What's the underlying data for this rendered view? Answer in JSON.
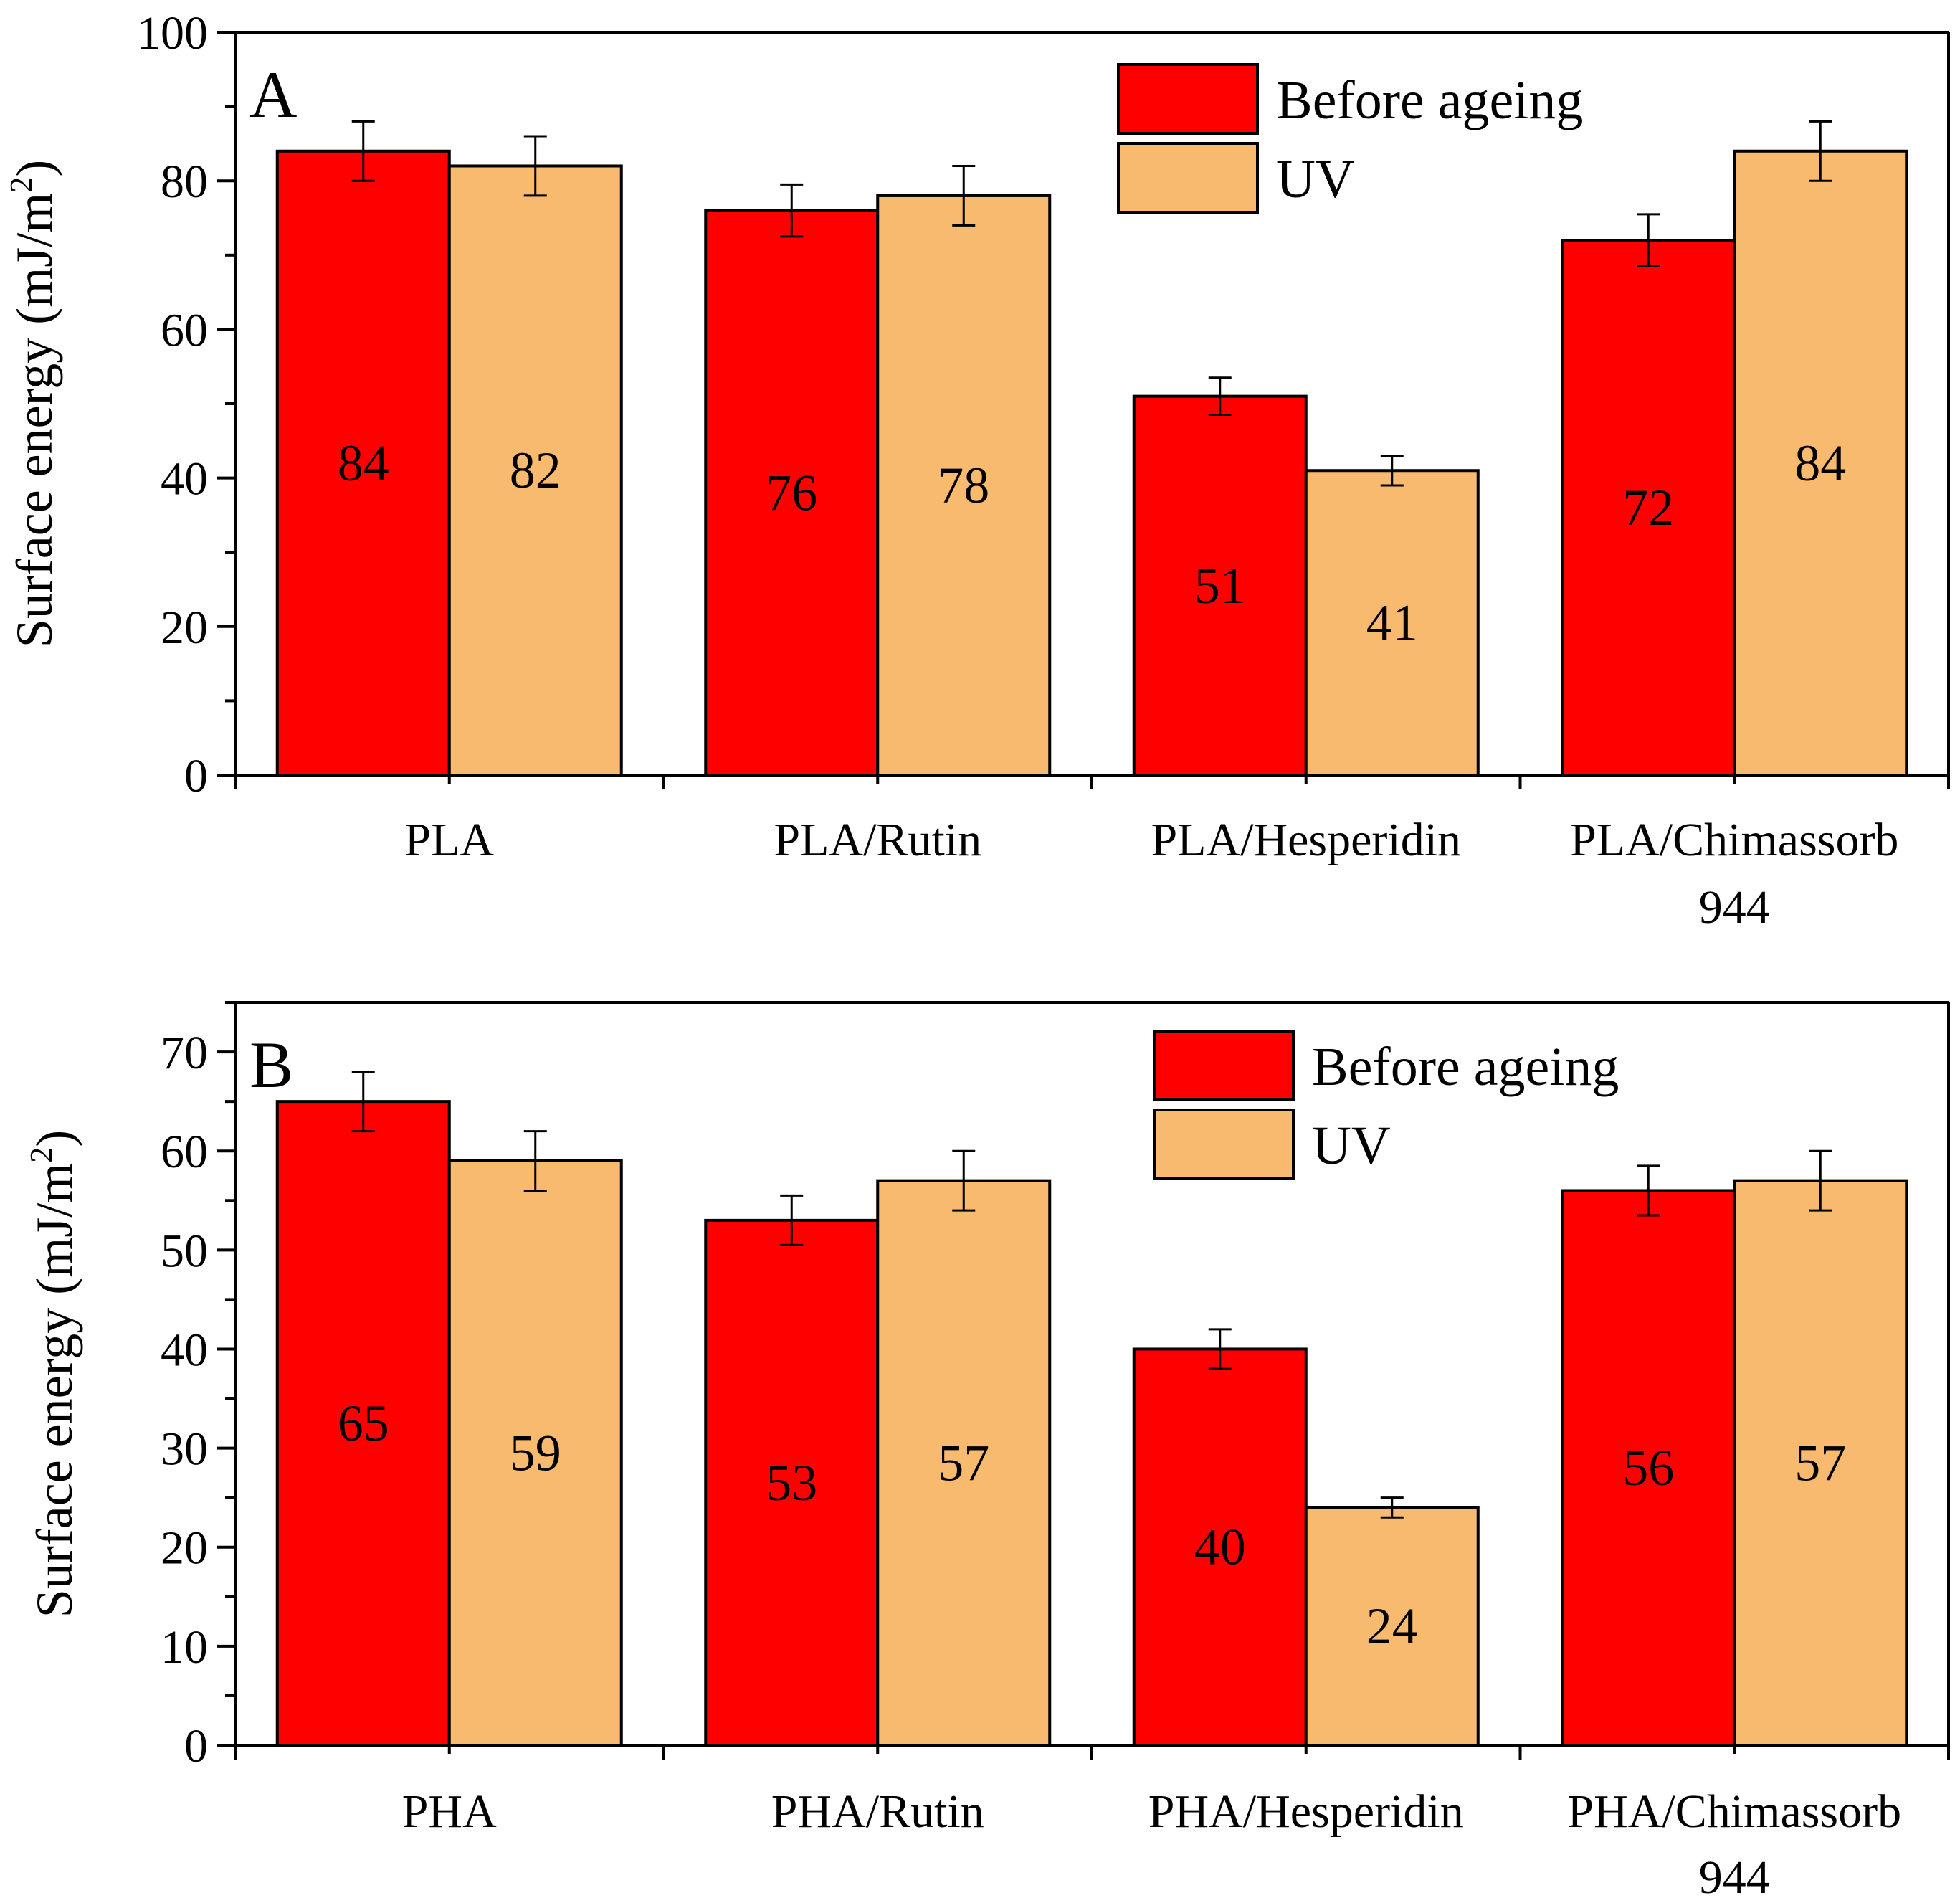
{
  "colors": {
    "before": "#ff0000",
    "uv": "#f7ba6f",
    "axis": "#000000"
  },
  "chart_data": [
    {
      "type": "bar",
      "panel_label": "A",
      "ylabel": "Surface energy (mJ/m",
      "ylabel_sup": "2",
      "ylabel_close": ")",
      "ylim": [
        0,
        100
      ],
      "yticks": [
        0,
        20,
        40,
        60,
        80,
        100
      ],
      "yminor_step": 10,
      "categories": [
        [
          "PLA"
        ],
        [
          "PLA/Rutin"
        ],
        [
          "PLA/Hesperidin"
        ],
        [
          "PLA/Chimassorb",
          "944"
        ]
      ],
      "series": [
        {
          "name": "Before ageing",
          "values": [
            84,
            76,
            51,
            72
          ],
          "errors": [
            4.0,
            3.5,
            2.5,
            3.5
          ]
        },
        {
          "name": "UV",
          "values": [
            82,
            78,
            41,
            84
          ],
          "errors": [
            4.0,
            4.0,
            2.0,
            4.0
          ]
        }
      ],
      "legend_position": "top-right"
    },
    {
      "type": "bar",
      "panel_label": "B",
      "ylabel": "Surface energy (mJ/m",
      "ylabel_sup": "2",
      "ylabel_close": ")",
      "ylim": [
        0,
        75
      ],
      "yticks": [
        0,
        10,
        20,
        30,
        40,
        50,
        60,
        70
      ],
      "yminor_step": 5,
      "categories": [
        [
          "PHA"
        ],
        [
          "PHA/Rutin"
        ],
        [
          "PHA/Hesperidin"
        ],
        [
          "PHA/Chimassorb",
          "944"
        ]
      ],
      "series": [
        {
          "name": "Before ageing",
          "values": [
            65,
            53,
            40,
            56
          ],
          "errors": [
            3.0,
            2.5,
            2.0,
            2.5
          ]
        },
        {
          "name": "UV",
          "values": [
            59,
            57,
            24,
            57
          ],
          "errors": [
            3.0,
            3.0,
            1.0,
            3.0
          ]
        }
      ],
      "legend_position": "top-right"
    }
  ]
}
